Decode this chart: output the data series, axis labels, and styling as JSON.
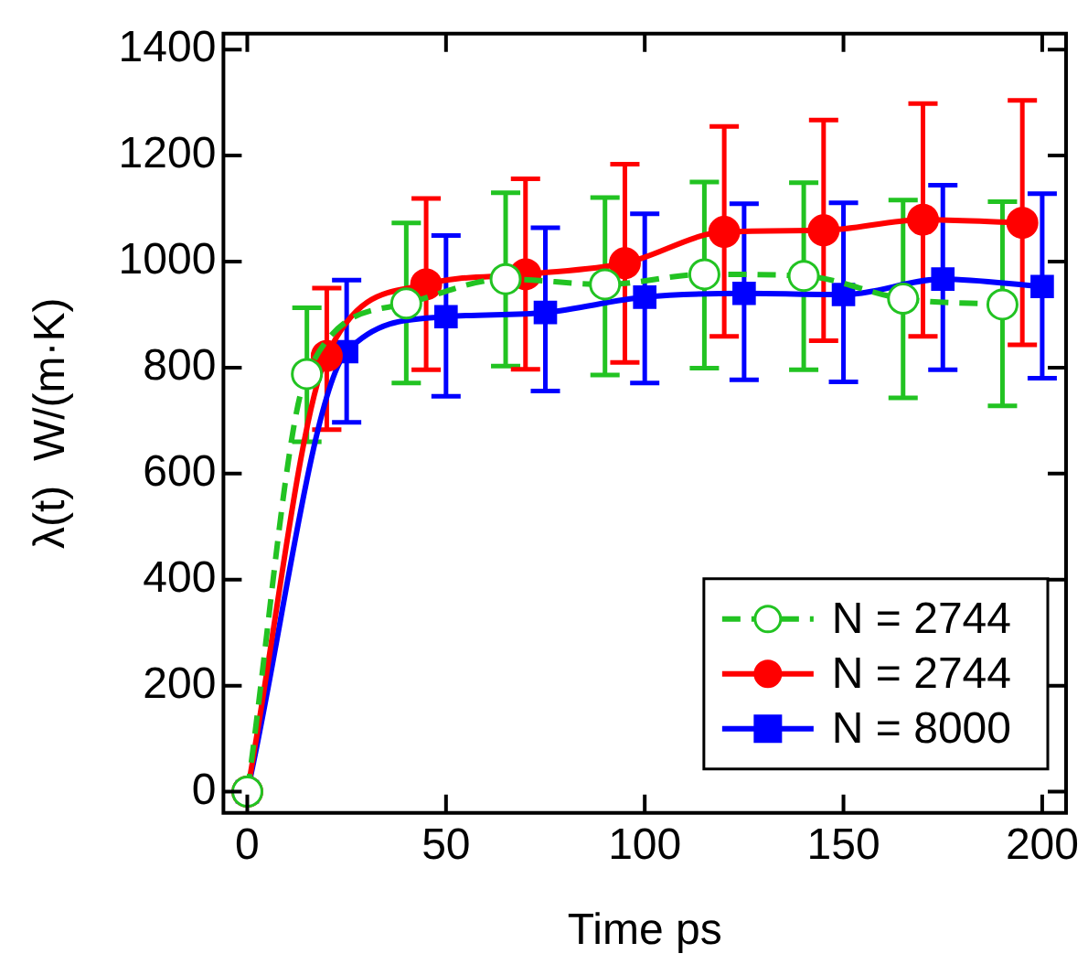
{
  "chart_data": {
    "type": "line",
    "xlabel": "Time ps",
    "ylabel": "λ(t)  W/(m·K)",
    "xlim": [
      -6,
      206
    ],
    "ylim": [
      -40,
      1430
    ],
    "xticks": [
      0,
      50,
      100,
      150,
      200
    ],
    "yticks": [
      0,
      200,
      400,
      600,
      800,
      1000,
      1200,
      1400
    ],
    "grid": false,
    "legend": "bottom right",
    "series": [
      {
        "name": "N = 2744",
        "color": "#22c322",
        "marker": "circle",
        "line_style": "dashed",
        "x": [
          0,
          15,
          40,
          65,
          90,
          115,
          140,
          165,
          190
        ],
        "values": [
          0,
          788,
          921,
          967,
          957,
          976,
          973,
          930,
          919
        ],
        "errors": [
          null,
          [
            660,
            913
          ],
          [
            771,
            1073
          ],
          [
            803,
            1130
          ],
          [
            786,
            1121
          ],
          [
            799,
            1150
          ],
          [
            796,
            1149
          ],
          [
            743,
            1116
          ],
          [
            728,
            1113
          ]
        ]
      },
      {
        "name": "N = 2744",
        "color": "#ff0000",
        "marker": "circle",
        "line_style": "solid",
        "x": [
          0,
          20,
          45,
          70,
          95,
          120,
          145,
          170,
          195
        ],
        "values": [
          0,
          822,
          957,
          976,
          997,
          1056,
          1059,
          1079,
          1073
        ],
        "errors": [
          null,
          [
            683,
            950
          ],
          [
            796,
            1119
          ],
          [
            797,
            1156
          ],
          [
            810,
            1184
          ],
          [
            859,
            1255
          ],
          [
            851,
            1267
          ],
          [
            859,
            1298
          ],
          [
            843,
            1304
          ]
        ]
      },
      {
        "name": "N = 8000",
        "color": "#0000ff",
        "marker": "square",
        "line_style": "solid",
        "x": [
          0,
          25,
          50,
          75,
          100,
          125,
          150,
          175,
          200
        ],
        "values": [
          0,
          830,
          896,
          904,
          933,
          940,
          938,
          967,
          953
        ],
        "errors": [
          null,
          [
            697,
            965
          ],
          [
            746,
            1049
          ],
          [
            756,
            1064
          ],
          [
            771,
            1090
          ],
          [
            777,
            1109
          ],
          [
            773,
            1111
          ],
          [
            796,
            1144
          ],
          [
            780,
            1128
          ]
        ]
      }
    ]
  }
}
